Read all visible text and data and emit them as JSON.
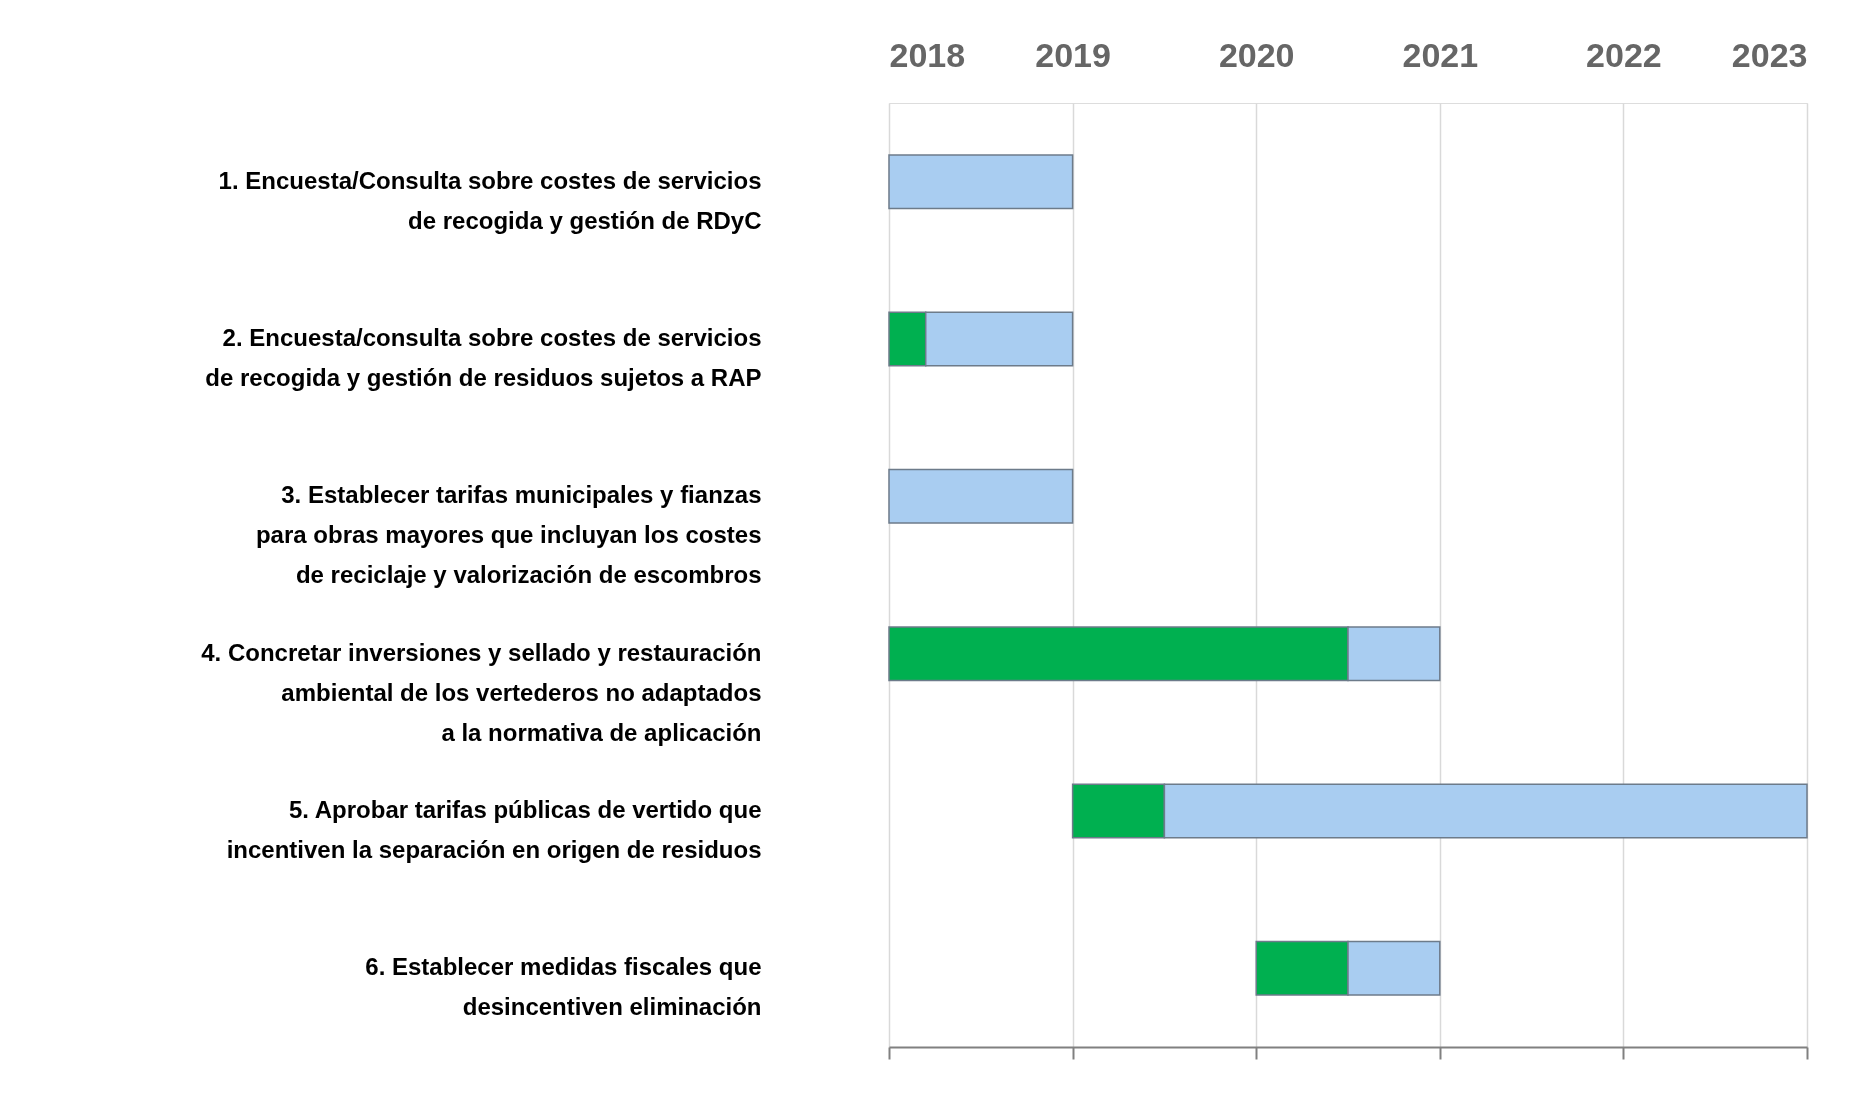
{
  "chart_data": {
    "type": "bar",
    "orientation": "horizontal",
    "categories": [
      "1. Encuesta/Consulta sobre costes de servicios\nde recogida y gestión de RDyC",
      "2. Encuesta/consulta sobre costes de servicios\nde recogida y gestión de residuos sujetos a RAP",
      "3. Establecer tarifas municipales y fianzas\npara obras mayores que incluyan los costes\nde reciclaje y valorización de escombros",
      "4. Concretar inversiones y sellado y restauración\nambiental de los vertederos no adaptados\na la normativa de aplicación",
      "5. Aprobar tarifas públicas de vertido que\nincentiven la separación en origen de residuos",
      "6. Establecer medidas fiscales que\ndesincentiven eliminación"
    ],
    "series": [
      {
        "color": "#00b050",
        "base": [
          null,
          2018,
          null,
          2018,
          2019,
          2020
        ],
        "values": [
          null,
          0.2,
          null,
          2.5,
          0.5,
          0.5
        ]
      },
      {
        "color": "#a9cdf1",
        "base": [
          2018,
          2018.2,
          2018,
          2020.5,
          2019.5,
          2020.5
        ],
        "values": [
          1,
          0.8,
          1,
          0.5,
          3.5,
          0.5
        ]
      }
    ],
    "xlim": [
      2018,
      2023
    ],
    "xticks": [
      2018,
      2019,
      2020,
      2021,
      2022,
      2023
    ],
    "grid": "x"
  }
}
